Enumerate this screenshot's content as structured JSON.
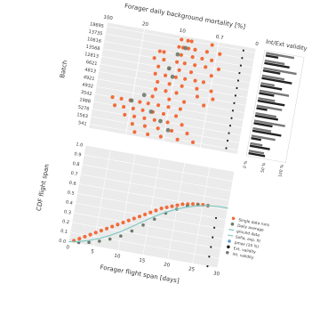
{
  "chart_data": [
    {
      "id": "scatter",
      "type": "scatter",
      "title": "",
      "xlabel": "Forager daily background mortality [%]",
      "ylabel": "Batch",
      "x_ticks": [
        "100",
        "20",
        "10",
        "0.7",
        "0"
      ],
      "xlim": [
        0,
        5
      ],
      "categories": [
        "18695",
        "13735",
        "10616",
        "13568",
        "12813",
        "6621",
        "4813",
        "4921",
        "4932",
        "3542",
        "1988",
        "5276",
        "1563",
        "541"
      ],
      "series": [
        {
          "name": "Single data runs",
          "color": "#f26b3a",
          "points": [
            [
              2.52,
              0
            ],
            [
              2.74,
              0
            ],
            [
              2.86,
              0
            ],
            [
              3.55,
              0
            ],
            [
              2.48,
              1
            ],
            [
              2.62,
              1
            ],
            [
              2.8,
              1
            ],
            [
              3.02,
              1
            ],
            [
              3.42,
              1
            ],
            [
              3.85,
              1
            ],
            [
              1.88,
              2
            ],
            [
              2.02,
              2
            ],
            [
              2.6,
              2
            ],
            [
              2.98,
              2
            ],
            [
              3.3,
              2
            ],
            [
              3.62,
              2
            ],
            [
              1.74,
              3
            ],
            [
              2.06,
              3
            ],
            [
              2.5,
              3
            ],
            [
              2.76,
              3
            ],
            [
              3.1,
              3
            ],
            [
              3.46,
              3
            ],
            [
              3.9,
              3
            ],
            [
              1.92,
              4
            ],
            [
              2.28,
              4
            ],
            [
              2.62,
              4
            ],
            [
              3.02,
              4
            ],
            [
              3.7,
              4
            ],
            [
              1.86,
              5
            ],
            [
              2.2,
              5
            ],
            [
              2.55,
              5
            ],
            [
              2.86,
              5
            ],
            [
              3.2,
              5
            ],
            [
              3.48,
              5
            ],
            [
              1.98,
              6
            ],
            [
              2.38,
              6
            ],
            [
              2.8,
              6
            ],
            [
              3.3,
              6
            ],
            [
              3.78,
              6
            ],
            [
              1.96,
              7
            ],
            [
              2.3,
              7
            ],
            [
              2.66,
              7
            ],
            [
              3.36,
              7
            ],
            [
              3.88,
              7
            ],
            [
              1.9,
              8
            ],
            [
              2.46,
              8
            ],
            [
              2.96,
              8
            ],
            [
              3.62,
              8
            ],
            [
              0.6,
              9
            ],
            [
              0.9,
              9
            ],
            [
              1.2,
              9
            ],
            [
              1.52,
              9
            ],
            [
              1.8,
              9
            ],
            [
              2.14,
              9
            ],
            [
              2.48,
              9
            ],
            [
              2.88,
              9
            ],
            [
              0.72,
              10
            ],
            [
              1.02,
              10
            ],
            [
              1.34,
              10
            ],
            [
              1.66,
              10
            ],
            [
              2.0,
              10
            ],
            [
              2.36,
              10
            ],
            [
              2.78,
              10
            ],
            [
              1.1,
              11
            ],
            [
              1.42,
              11
            ],
            [
              1.76,
              11
            ],
            [
              2.1,
              11
            ],
            [
              2.54,
              11
            ],
            [
              3.02,
              11
            ],
            [
              1.4,
              12
            ],
            [
              1.82,
              12
            ],
            [
              2.26,
              12
            ],
            [
              2.72,
              12
            ],
            [
              3.24,
              12
            ],
            [
              1.52,
              13
            ],
            [
              1.96,
              13
            ],
            [
              2.4,
              13
            ],
            [
              2.96,
              13
            ],
            [
              3.48,
              13
            ]
          ]
        },
        {
          "name": "Daily average",
          "color": "#6b7a6b",
          "points": [
            [
              2.7,
              1
            ],
            [
              2.48,
              2
            ],
            [
              2.28,
              4
            ],
            [
              2.44,
              5
            ],
            [
              1.62,
              8
            ],
            [
              1.24,
              9
            ],
            [
              1.94,
              10
            ],
            [
              2.3,
              11
            ],
            [
              2.6,
              12
            ]
          ]
        },
        {
          "name": "Ext. validity",
          "color": "#222222",
          "points": [
            [
              4.6,
              0
            ],
            [
              4.6,
              1
            ],
            [
              4.6,
              2
            ],
            [
              4.6,
              3
            ],
            [
              4.6,
              4
            ],
            [
              4.6,
              5
            ],
            [
              4.6,
              6
            ],
            [
              4.6,
              7
            ],
            [
              4.6,
              8
            ],
            [
              4.6,
              9
            ],
            [
              4.6,
              10
            ],
            [
              4.6,
              11
            ],
            [
              4.6,
              12
            ],
            [
              4.6,
              13
            ]
          ]
        }
      ]
    },
    {
      "id": "validity",
      "type": "bar",
      "title": "Int/Ext validity",
      "x_ticks": [
        "100 %",
        "50 %",
        "0 %"
      ],
      "xlim": [
        0,
        1
      ],
      "categories": [
        "18695",
        "13735",
        "10616",
        "13568",
        "12813",
        "6621",
        "4813",
        "4921",
        "4932",
        "3542",
        "1988",
        "5276",
        "1563",
        "541"
      ],
      "series": [
        {
          "name": "Int. validity",
          "color": "#777777",
          "values": [
            0.78,
            0.55,
            0.92,
            0.62,
            0.38,
            0.82,
            0.47,
            0.7,
            0.58,
            0.86,
            0.51,
            0.66,
            0.34,
            0.42
          ]
        },
        {
          "name": "Ext. validity",
          "color": "#222222",
          "values": [
            0.35,
            0.7,
            0.48,
            0.84,
            0.6,
            0.42,
            0.75,
            0.3,
            0.64,
            0.52,
            0.8,
            0.28,
            0.56,
            0.46
          ]
        }
      ]
    },
    {
      "id": "cdf",
      "type": "line",
      "title": "",
      "xlabel": "Forager flight span [days]",
      "ylabel": "CDF flight span",
      "xlim": [
        0,
        30
      ],
      "ylim": [
        0,
        1
      ],
      "x_ticks": [
        0,
        5,
        10,
        15,
        20,
        25,
        30
      ],
      "y_ticks": [
        "0.0",
        "0.1",
        "0.2",
        "0.3",
        "0.4",
        "0.5",
        "0.6",
        "0.7",
        "0.8",
        "0.9",
        "1.0"
      ],
      "series": [
        {
          "name": "Single data runs",
          "color": "#f26b3a",
          "x": [
            1,
            2,
            3,
            4,
            5,
            6,
            7,
            8,
            9,
            10,
            11,
            12,
            13,
            14,
            15,
            16,
            17,
            18,
            19,
            20,
            21,
            22,
            23,
            24,
            25,
            26
          ],
          "y": [
            0.02,
            0.05,
            0.08,
            0.11,
            0.14,
            0.17,
            0.2,
            0.23,
            0.26,
            0.29,
            0.32,
            0.35,
            0.38,
            0.41,
            0.44,
            0.47,
            0.5,
            0.52,
            0.54,
            0.56,
            0.58,
            0.59,
            0.6,
            0.605,
            0.61,
            0.61
          ]
        },
        {
          "name": "Daily average",
          "color": "#6b7a6b",
          "x": [
            2,
            4,
            6,
            8,
            10,
            12,
            14,
            16,
            18,
            20,
            22,
            24,
            26
          ],
          "y": [
            0.01,
            0.03,
            0.06,
            0.1,
            0.15,
            0.22,
            0.3,
            0.38,
            0.46,
            0.52,
            0.57,
            0.6,
            0.61
          ]
        },
        {
          "name": "Sofia, exp. fit",
          "color": "#7fc7c2",
          "x": [
            0,
            2,
            4,
            6,
            8,
            10,
            12,
            14,
            16,
            18,
            20,
            22,
            24,
            26,
            28,
            30
          ],
          "y": [
            0.0,
            0.02,
            0.05,
            0.09,
            0.14,
            0.2,
            0.27,
            0.34,
            0.41,
            0.47,
            0.52,
            0.56,
            0.59,
            0.61,
            0.62,
            0.62
          ]
        },
        {
          "name": "Ext. validity",
          "color": "#222222",
          "x": [
            28,
            28,
            28,
            28,
            28,
            28
          ],
          "y": [
            0.0,
            0.1,
            0.2,
            0.3,
            0.4,
            0.5
          ]
        }
      ],
      "legend": {
        "position": "right",
        "entries": [
          {
            "label": "Single data runs",
            "color": "#f26b3a",
            "marker": "dot"
          },
          {
            "label": "Daily average",
            "color": "#6b7a6b",
            "marker": "dot"
          },
          {
            "label": "ground data",
            "color": "#7fc7c2",
            "marker": "line"
          },
          {
            "label": "Sofia, exp. fit",
            "color": "#7fc7c2",
            "marker": "line"
          },
          {
            "label": "pmax (20 %)",
            "color": "#5e9bd6",
            "marker": "dot"
          },
          {
            "label": "Ext. validity",
            "color": "#222222",
            "marker": "dot"
          },
          {
            "label": "Int. validity",
            "color": "#777777",
            "marker": "dot"
          }
        ]
      }
    }
  ]
}
